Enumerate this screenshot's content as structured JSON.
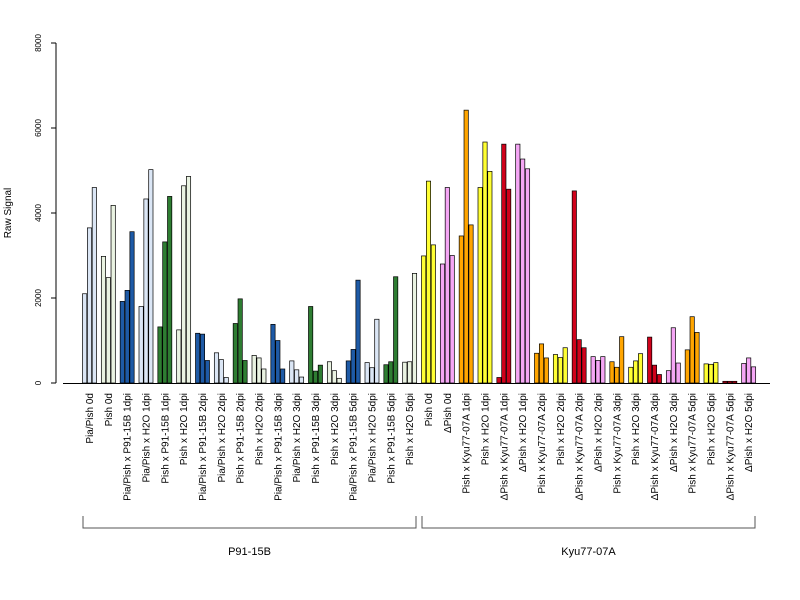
{
  "chart_data": {
    "type": "bar",
    "ylabel": "Raw Signal",
    "xlabel": "",
    "ylim": [
      0,
      8000
    ],
    "yticks": [
      0,
      2000,
      4000,
      6000,
      8000
    ],
    "grid": false,
    "legend": "none",
    "categories": [
      {
        "label": "Pia/Pish 0d",
        "color": "#dbe6f5",
        "values": [
          2100,
          3650,
          4600
        ]
      },
      {
        "label": "Pish 0d",
        "color": "#eaf3e2",
        "values": [
          2980,
          2480,
          4180
        ]
      },
      {
        "label": "Pia/Pish x P91-15B 1dpi",
        "color": "#1e5aa6",
        "values": [
          1920,
          2180,
          3560
        ]
      },
      {
        "label": "Pia/Pish x H2O 1dpi",
        "color": "#dbe6f5",
        "values": [
          1800,
          4330,
          5020
        ]
      },
      {
        "label": "Pish x P91-15B 1dpi",
        "color": "#2e7d32",
        "values": [
          1320,
          3320,
          4390
        ]
      },
      {
        "label": "Pish x H2O 1dpi",
        "color": "#eaf3e2",
        "values": [
          1250,
          4640,
          4860
        ]
      },
      {
        "label": "Pia/Pish x P91-15B 2dpi",
        "color": "#1e5aa6",
        "values": [
          1170,
          1150,
          530
        ]
      },
      {
        "label": "Pia/Pish x H2O 2dpi",
        "color": "#dbe6f5",
        "values": [
          710,
          550,
          130
        ]
      },
      {
        "label": "Pish x P91-15B 2dpi",
        "color": "#2e7d32",
        "values": [
          1400,
          1980,
          530
        ]
      },
      {
        "label": "Pish x H2O 2dpi",
        "color": "#eaf3e2",
        "values": [
          650,
          590,
          330
        ]
      },
      {
        "label": "Pia/Pish x P91-15B 3dpi",
        "color": "#1e5aa6",
        "values": [
          1380,
          1000,
          330
        ]
      },
      {
        "label": "Pia/Pish x H2O 3dpi",
        "color": "#dbe6f5",
        "values": [
          520,
          310,
          140
        ]
      },
      {
        "label": "Pish x P91-15B 3dpi",
        "color": "#2e7d32",
        "values": [
          1800,
          280,
          420
        ]
      },
      {
        "label": "Pish x H2O 3dpi",
        "color": "#eaf3e2",
        "values": [
          500,
          290,
          110
        ]
      },
      {
        "label": "Pia/Pish x P91-15B 5dpi",
        "color": "#1e5aa6",
        "values": [
          520,
          790,
          2420
        ]
      },
      {
        "label": "Pia/Pish x H2O 5dpi",
        "color": "#dbe6f5",
        "values": [
          480,
          360,
          1500
        ]
      },
      {
        "label": "Pish x P91-15B 5dpi",
        "color": "#2e7d32",
        "values": [
          430,
          500,
          2500
        ]
      },
      {
        "label": "Pish x H2O 5dpi",
        "color": "#eaf3e2",
        "values": [
          490,
          500,
          2580
        ]
      },
      {
        "label": "Pish 0d",
        "color": "#ffff33",
        "values": [
          2990,
          4750,
          3250
        ]
      },
      {
        "label": "ΔPish 0d",
        "color": "#f5a6f5",
        "values": [
          2800,
          4600,
          3000
        ]
      },
      {
        "label": "Pish x Kyu77-07A 1dpi",
        "color": "#ffa500",
        "values": [
          3460,
          6420,
          3720
        ]
      },
      {
        "label": "Pish x H2O 1dpi",
        "color": "#ffff33",
        "values": [
          4600,
          5670,
          4980
        ]
      },
      {
        "label": "ΔPish x Kyu77-07A 1dpi",
        "color": "#d0021b",
        "values": [
          130,
          5620,
          4560
        ]
      },
      {
        "label": "ΔPish x H2O 1dpi",
        "color": "#f5a6f5",
        "values": [
          5620,
          5270,
          5040
        ]
      },
      {
        "label": "Pish x Kyu77-07A 2dpi",
        "color": "#ffa500",
        "values": [
          700,
          920,
          590
        ]
      },
      {
        "label": "Pish x H2O 2dpi",
        "color": "#ffff33",
        "values": [
          670,
          600,
          830
        ]
      },
      {
        "label": "ΔPish x Kyu77-07A 2dpi",
        "color": "#d0021b",
        "values": [
          4520,
          1020,
          830
        ]
      },
      {
        "label": "ΔPish x H2O 2dpi",
        "color": "#f5a6f5",
        "values": [
          620,
          530,
          620
        ]
      },
      {
        "label": "Pish x Kyu77-07A 3dpi",
        "color": "#ffa500",
        "values": [
          500,
          370,
          1090
        ]
      },
      {
        "label": "Pish x H2O 3dpi",
        "color": "#ffff33",
        "values": [
          370,
          520,
          690
        ]
      },
      {
        "label": "ΔPish x Kyu77-07A 3dpi",
        "color": "#d0021b",
        "values": [
          1080,
          420,
          200
        ]
      },
      {
        "label": "ΔPish x H2O 3dpi",
        "color": "#f5a6f5",
        "values": [
          290,
          1300,
          470
        ]
      },
      {
        "label": "Pish x Kyu77-07A 5dpi",
        "color": "#ffa500",
        "values": [
          780,
          1560,
          1190
        ]
      },
      {
        "label": "Pish x H2O 5dpi",
        "color": "#ffff33",
        "values": [
          450,
          440,
          480
        ]
      },
      {
        "label": "ΔPish x Kyu77-07A 5dpi",
        "color": "#d0021b",
        "values": [
          40,
          40,
          40
        ]
      },
      {
        "label": "ΔPish x H2O 5dpi",
        "color": "#f5a6f5",
        "values": [
          460,
          590,
          380
        ]
      }
    ],
    "groups": [
      {
        "label": "P91-15B",
        "first": 0,
        "last": 17
      },
      {
        "label": "Kyu77-07A",
        "first": 18,
        "last": 35
      }
    ]
  }
}
